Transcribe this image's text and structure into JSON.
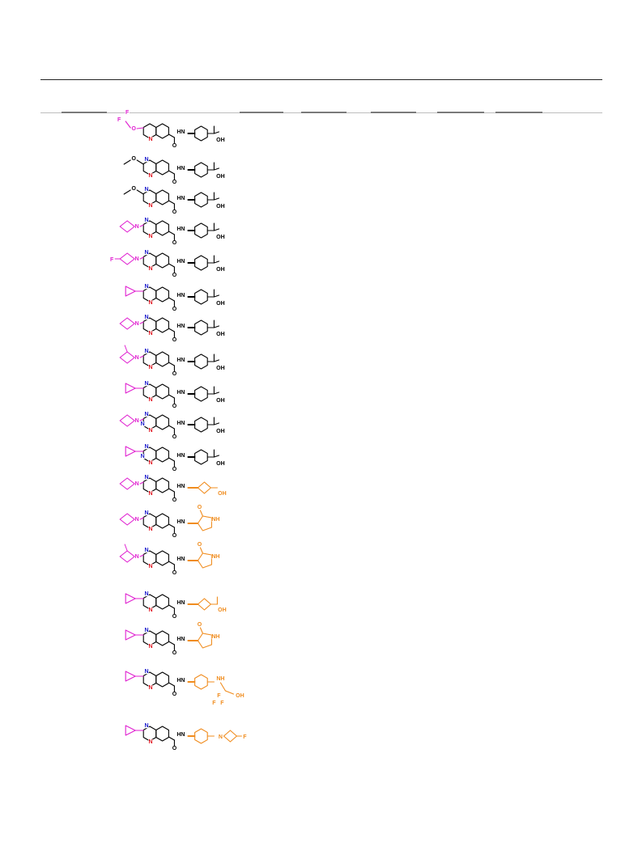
{
  "colors": {
    "core": "#000000",
    "nitrogen": "#e0141e",
    "ring_nitrogen_blue": "#1a1acc",
    "left_substituent": "#e020d0",
    "right_substituent": "#f08c1e",
    "rule": "#222222",
    "header_rule": "#bdbdbd"
  },
  "table": {
    "header_columns": [
      "",
      "",
      "",
      "",
      "",
      "",
      "",
      ""
    ],
    "rows": [
      {
        "left": "F F/O",
        "left_kind": "difluoromethoxy",
        "core": "quinoline",
        "amide": "HN",
        "right_kind": "cyclohexyl-C(Me)2OH",
        "right_labels": [
          "OH"
        ],
        "left_color": "magenta",
        "right_color": "black"
      },
      {
        "left": "O",
        "left_kind": "methoxy",
        "core": "1,6-naphthyridine",
        "amide": "HN",
        "right_kind": "cyclohexyl-C(Me)2OH",
        "right_labels": [
          "OH"
        ],
        "left_color": "black",
        "right_color": "black"
      },
      {
        "left": "O",
        "left_kind": "methoxy",
        "core": "1,8-naphthyridine",
        "amide": "HN",
        "right_kind": "cyclohexyl-C(Me)2OH",
        "right_labels": [
          "OH"
        ],
        "left_color": "black",
        "right_color": "black"
      },
      {
        "left": "N",
        "left_kind": "azetidine",
        "core": "1,6-naphthyridine",
        "amide": "HN",
        "right_kind": "cyclohexyl-C(Me)2OH",
        "right_labels": [
          "OH"
        ],
        "left_color": "magenta",
        "right_color": "black"
      },
      {
        "left": "F",
        "left_kind": "3-fluoroazetidine",
        "core": "1,6-naphthyridine",
        "amide": "HN",
        "right_kind": "cyclohexyl-C(Me)2OH",
        "right_labels": [
          "OH"
        ],
        "left_color": "magenta",
        "right_color": "black"
      },
      {
        "left": "",
        "left_kind": "cyclopropyl",
        "core": "1,6-naphthyridine",
        "amide": "HN",
        "right_kind": "cyclohexyl-C(Me)2OH",
        "right_labels": [
          "OH"
        ],
        "left_color": "magenta",
        "right_color": "black"
      },
      {
        "left": "N",
        "left_kind": "azetidine",
        "core": "1,8-naphthyridine",
        "amide": "HN",
        "right_kind": "cyclohexyl-C(Me)2OH",
        "right_labels": [
          "OH"
        ],
        "left_color": "magenta",
        "right_color": "black"
      },
      {
        "left": "N",
        "left_kind": "2-methylazetidine",
        "core": "1,8-naphthyridine",
        "amide": "HN",
        "right_kind": "cyclohexyl-C(Me)2OH",
        "right_labels": [
          "OH"
        ],
        "left_color": "magenta",
        "right_color": "black"
      },
      {
        "left": "",
        "left_kind": "cyclopropyl",
        "core": "1,8-naphthyridine",
        "amide": "HN",
        "right_kind": "cyclohexyl-C(Me)2OH",
        "right_labels": [
          "OH"
        ],
        "left_color": "magenta",
        "right_color": "black"
      },
      {
        "left": "N",
        "left_kind": "azetidine",
        "core": "pyrido-pyrimidine",
        "amide": "HN",
        "right_kind": "cyclohexyl-C(Me)2OH",
        "right_labels": [
          "OH"
        ],
        "left_color": "magenta",
        "right_color": "black"
      },
      {
        "left": "",
        "left_kind": "cyclopropyl",
        "core": "pyrido-pyrimidine",
        "amide": "HN",
        "right_kind": "cyclohexyl-C(Me)2OH",
        "right_labels": [
          "OH"
        ],
        "left_color": "magenta",
        "right_color": "black"
      },
      {
        "left": "N",
        "left_kind": "azetidine",
        "core": "1,6-naphthyridine",
        "amide": "HN",
        "right_kind": "cyclobutyl-methyl-OH",
        "right_labels": [
          "OH"
        ],
        "left_color": "magenta",
        "right_color": "orange"
      },
      {
        "left": "N",
        "left_kind": "azetidine",
        "core": "1,6-naphthyridine",
        "amide": "HN",
        "right_kind": "pyrrolidinone",
        "right_labels": [
          "O",
          "NH"
        ],
        "left_color": "magenta",
        "right_color": "orange"
      },
      {
        "left": "N",
        "left_kind": "2-methylazetidine",
        "core": "1,6-naphthyridine",
        "amide": "HN",
        "right_kind": "pyrrolidinone",
        "right_labels": [
          "O",
          "NH"
        ],
        "left_color": "magenta",
        "right_color": "orange"
      },
      {
        "left": "",
        "left_kind": "cyclopropyl",
        "core": "1,6-naphthyridine",
        "amide": "HN",
        "right_kind": "cyclobutyl-C(Me)2OH",
        "right_labels": [
          "OH"
        ],
        "left_color": "magenta",
        "right_color": "orange"
      },
      {
        "left": "",
        "left_kind": "cyclopropyl",
        "core": "1,6-naphthyridine",
        "amide": "HN",
        "right_kind": "pyrrolidinone",
        "right_labels": [
          "O",
          "NH"
        ],
        "left_color": "magenta",
        "right_color": "orange"
      },
      {
        "left": "",
        "left_kind": "cyclopropyl",
        "core": "1,6-naphthyridine",
        "amide": "HN",
        "right_kind": "cyclohexyl-NH-CH(CF3)CH2OH",
        "right_labels": [
          "NH",
          "F",
          "F",
          "F",
          "OH"
        ],
        "left_color": "magenta",
        "right_color": "orange"
      },
      {
        "left": "",
        "left_kind": "cyclopropyl",
        "core": "1,6-naphthyridine",
        "amide": "HN",
        "right_kind": "cyclohexyl-3-fluoroazetidine",
        "right_labels": [
          "N",
          "F"
        ],
        "left_color": "magenta",
        "right_color": "orange"
      }
    ]
  },
  "atom_labels": {
    "nitrogen": "N",
    "oxygen": "O",
    "fluorine": "F",
    "hydroxyl": "OH",
    "amide_nh": "HN",
    "lactam_nh": "NH",
    "amine_nh": "NH"
  }
}
